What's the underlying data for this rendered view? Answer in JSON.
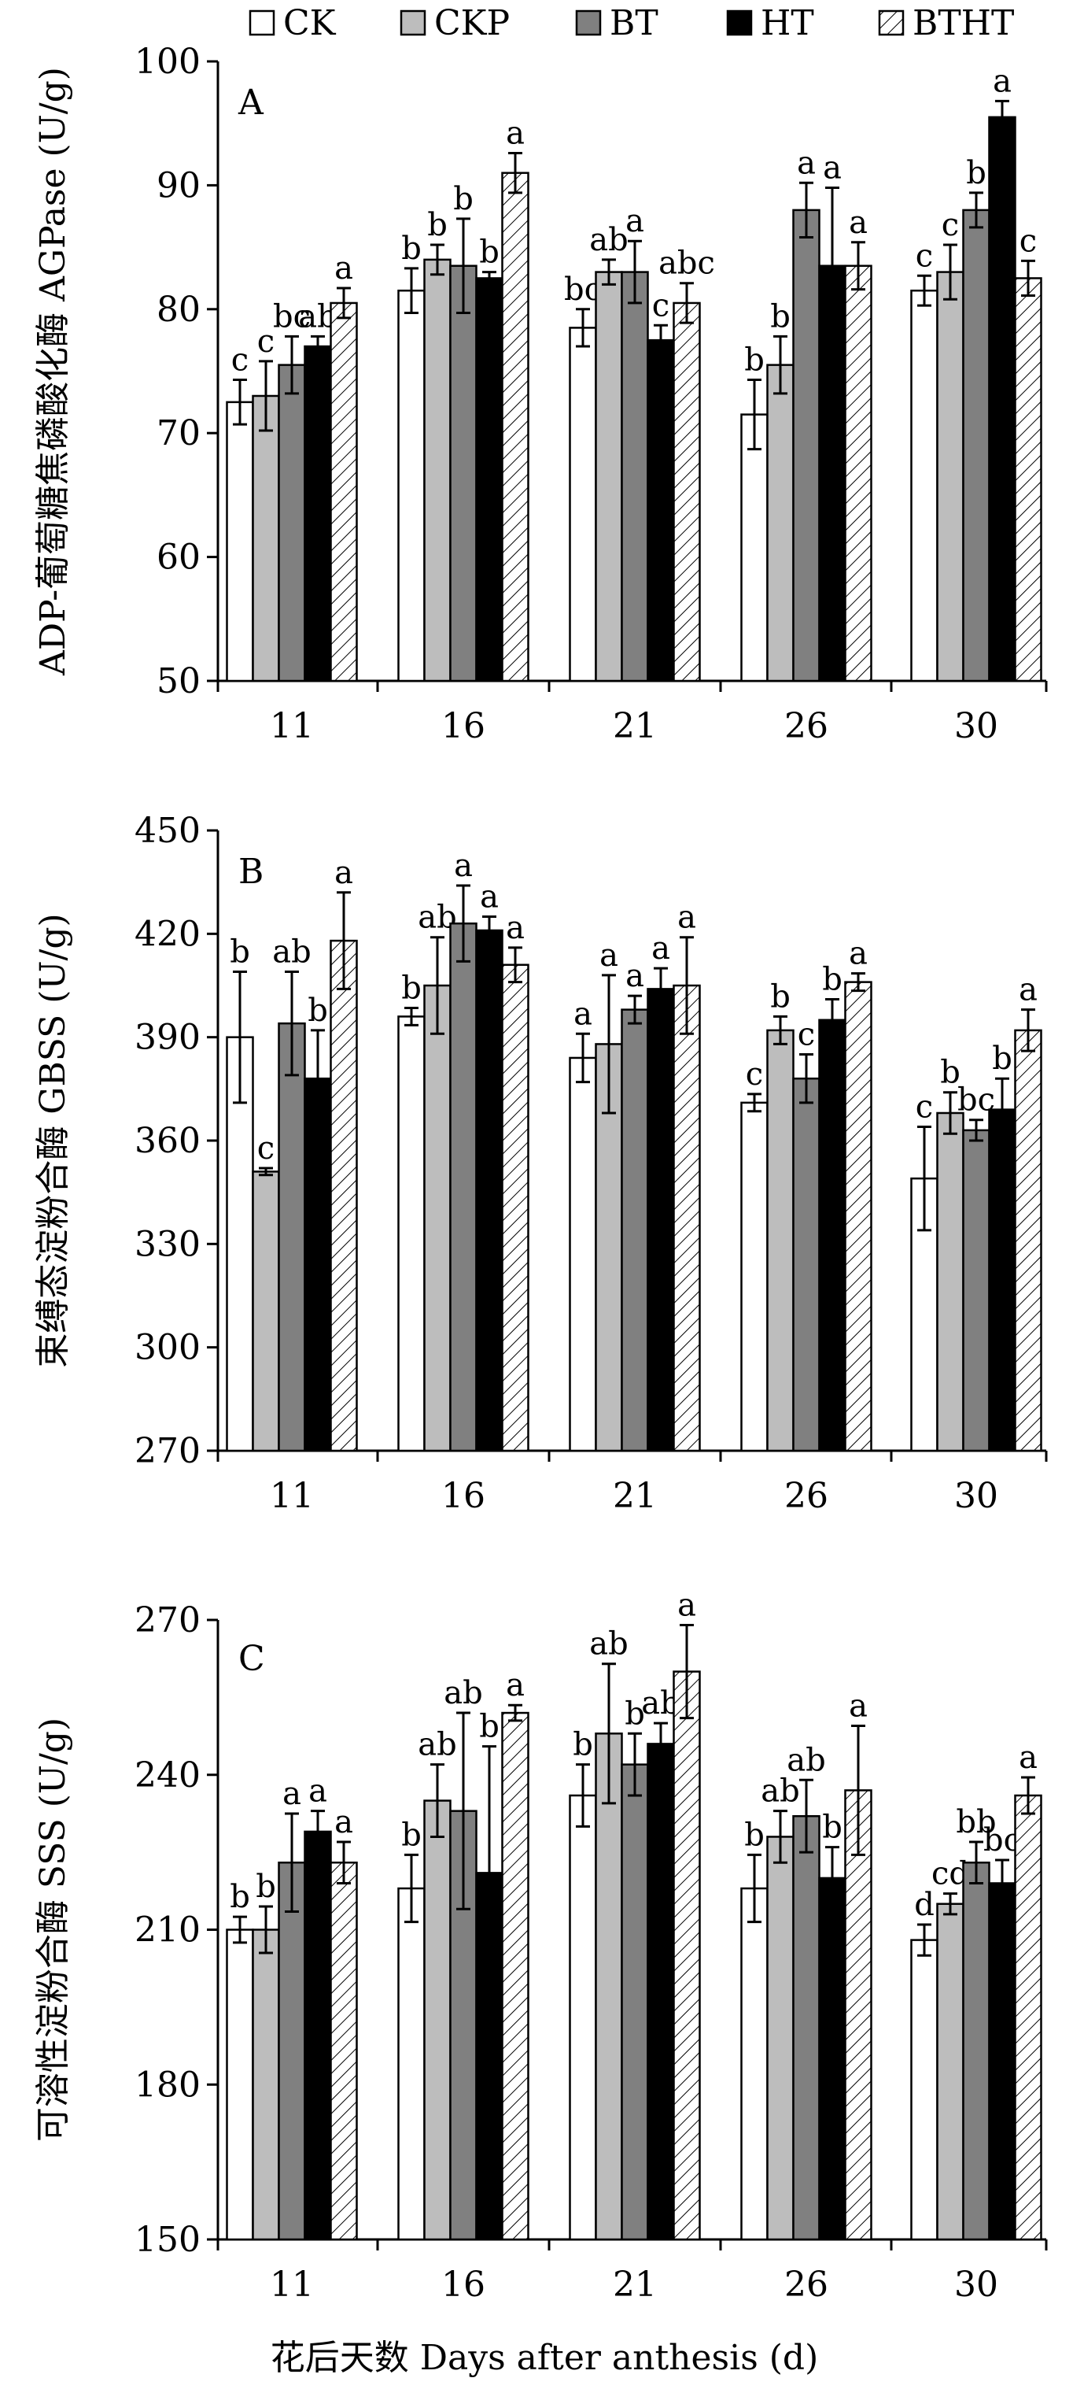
{
  "legend": [
    {
      "label": "CK",
      "fill": "#ffffff"
    },
    {
      "label": "CKP",
      "fill": "#bdbdbd"
    },
    {
      "label": "BT",
      "fill": "#808080"
    },
    {
      "label": "HT",
      "fill": "#000000"
    },
    {
      "label": "BTHT",
      "fill": "hatch"
    }
  ],
  "x_axis_title": "花后天数 Days after anthesis (d)",
  "chart_data": [
    {
      "type": "bar",
      "panel": "A",
      "ylabel": "ADP-葡萄糖焦磷酸化酶 AGPase (U/g)",
      "ylim": [
        50,
        100
      ],
      "yticks": [
        50,
        60,
        70,
        80,
        90,
        100
      ],
      "categories": [
        "11",
        "16",
        "21",
        "26",
        "30"
      ],
      "series": [
        {
          "name": "CK",
          "values": [
            72.5,
            81.5,
            78.5,
            71.5,
            81.5
          ],
          "errors": [
            1.8,
            1.8,
            1.5,
            2.8,
            1.2
          ],
          "letters": [
            "c",
            "b",
            "bc",
            "b",
            "c"
          ]
        },
        {
          "name": "CKP",
          "values": [
            73.0,
            84.0,
            83.0,
            75.5,
            83.0
          ],
          "errors": [
            2.8,
            1.2,
            1.0,
            2.3,
            2.2
          ],
          "letters": [
            "c",
            "b",
            "ab",
            "b",
            "c"
          ]
        },
        {
          "name": "BT",
          "values": [
            75.5,
            83.5,
            83.0,
            88.0,
            88.0
          ],
          "errors": [
            2.3,
            3.8,
            2.5,
            2.2,
            1.4
          ],
          "letters": [
            "bc",
            "b",
            "a",
            "a",
            "b"
          ]
        },
        {
          "name": "HT",
          "values": [
            77.0,
            82.5,
            77.5,
            83.5,
            95.5
          ],
          "errors": [
            0.8,
            0.5,
            1.2,
            6.3,
            1.3
          ],
          "letters": [
            "ab",
            "b",
            "c",
            "a",
            "a"
          ]
        },
        {
          "name": "BTHT",
          "values": [
            80.5,
            91.0,
            80.5,
            83.5,
            82.5
          ],
          "errors": [
            1.2,
            1.6,
            1.6,
            1.9,
            1.4
          ],
          "letters": [
            "a",
            "a",
            "abc",
            "a",
            "c"
          ]
        }
      ]
    },
    {
      "type": "bar",
      "panel": "B",
      "ylabel": "束缚态淀粉合酶 GBSS (U/g)",
      "ylim": [
        270,
        450
      ],
      "yticks": [
        270,
        300,
        330,
        360,
        390,
        420,
        450
      ],
      "categories": [
        "11",
        "16",
        "21",
        "26",
        "30"
      ],
      "series": [
        {
          "name": "CK",
          "values": [
            390,
            396,
            384,
            371,
            349
          ],
          "errors": [
            19,
            2.5,
            7,
            2.5,
            15
          ],
          "letters": [
            "b",
            "b",
            "a",
            "c",
            "c"
          ]
        },
        {
          "name": "CKP",
          "values": [
            351,
            405,
            388,
            392,
            368
          ],
          "errors": [
            1,
            14,
            20,
            4,
            6
          ],
          "letters": [
            "c",
            "ab",
            "a",
            "b",
            "b"
          ]
        },
        {
          "name": "BT",
          "values": [
            394,
            423,
            398,
            378,
            363
          ],
          "errors": [
            15,
            11,
            4,
            7,
            3
          ],
          "letters": [
            "ab",
            "a",
            "a",
            "c",
            "bc"
          ]
        },
        {
          "name": "HT",
          "values": [
            378,
            421,
            404,
            395,
            369
          ],
          "errors": [
            14,
            4,
            6,
            6,
            9
          ],
          "letters": [
            "b",
            "a",
            "a",
            "b",
            "b"
          ]
        },
        {
          "name": "BTHT",
          "values": [
            418,
            411,
            405,
            406,
            392
          ],
          "errors": [
            14,
            5,
            14,
            2.5,
            6
          ],
          "letters": [
            "a",
            "a",
            "a",
            "a",
            "a"
          ]
        }
      ]
    },
    {
      "type": "bar",
      "panel": "C",
      "ylabel": "可溶性淀粉合酶 SSS (U/g)",
      "ylim": [
        150,
        270
      ],
      "yticks": [
        150,
        180,
        210,
        240,
        270
      ],
      "categories": [
        "11",
        "16",
        "21",
        "26",
        "30"
      ],
      "series": [
        {
          "name": "CK",
          "values": [
            210,
            218,
            236,
            218,
            208
          ],
          "errors": [
            2.5,
            6.5,
            6.0,
            6.5,
            3.0
          ],
          "letters": [
            "b",
            "b",
            "b",
            "b",
            "d"
          ]
        },
        {
          "name": "CKP",
          "values": [
            210,
            235,
            248,
            228,
            215
          ],
          "errors": [
            4.5,
            7.0,
            13.5,
            5.0,
            2.0
          ],
          "letters": [
            "b",
            "ab",
            "ab",
            "ab",
            "cd"
          ]
        },
        {
          "name": "BT",
          "values": [
            223,
            233,
            242,
            232,
            223
          ],
          "errors": [
            9.5,
            19.0,
            6.0,
            7.0,
            4.0
          ],
          "letters": [
            "a",
            "ab",
            "b",
            "ab",
            "bb"
          ]
        },
        {
          "name": "HT",
          "values": [
            229,
            221,
            246,
            220,
            219
          ],
          "errors": [
            4.0,
            24.5,
            4.0,
            6.0,
            4.5
          ],
          "letters": [
            "a",
            "b",
            "ab",
            "b",
            "bc"
          ]
        },
        {
          "name": "BTHT",
          "values": [
            223,
            252,
            260,
            237,
            236
          ],
          "errors": [
            4.0,
            1.5,
            9.0,
            12.5,
            3.5
          ],
          "letters": [
            "a",
            "a",
            "a",
            "a",
            "a"
          ]
        }
      ]
    }
  ]
}
